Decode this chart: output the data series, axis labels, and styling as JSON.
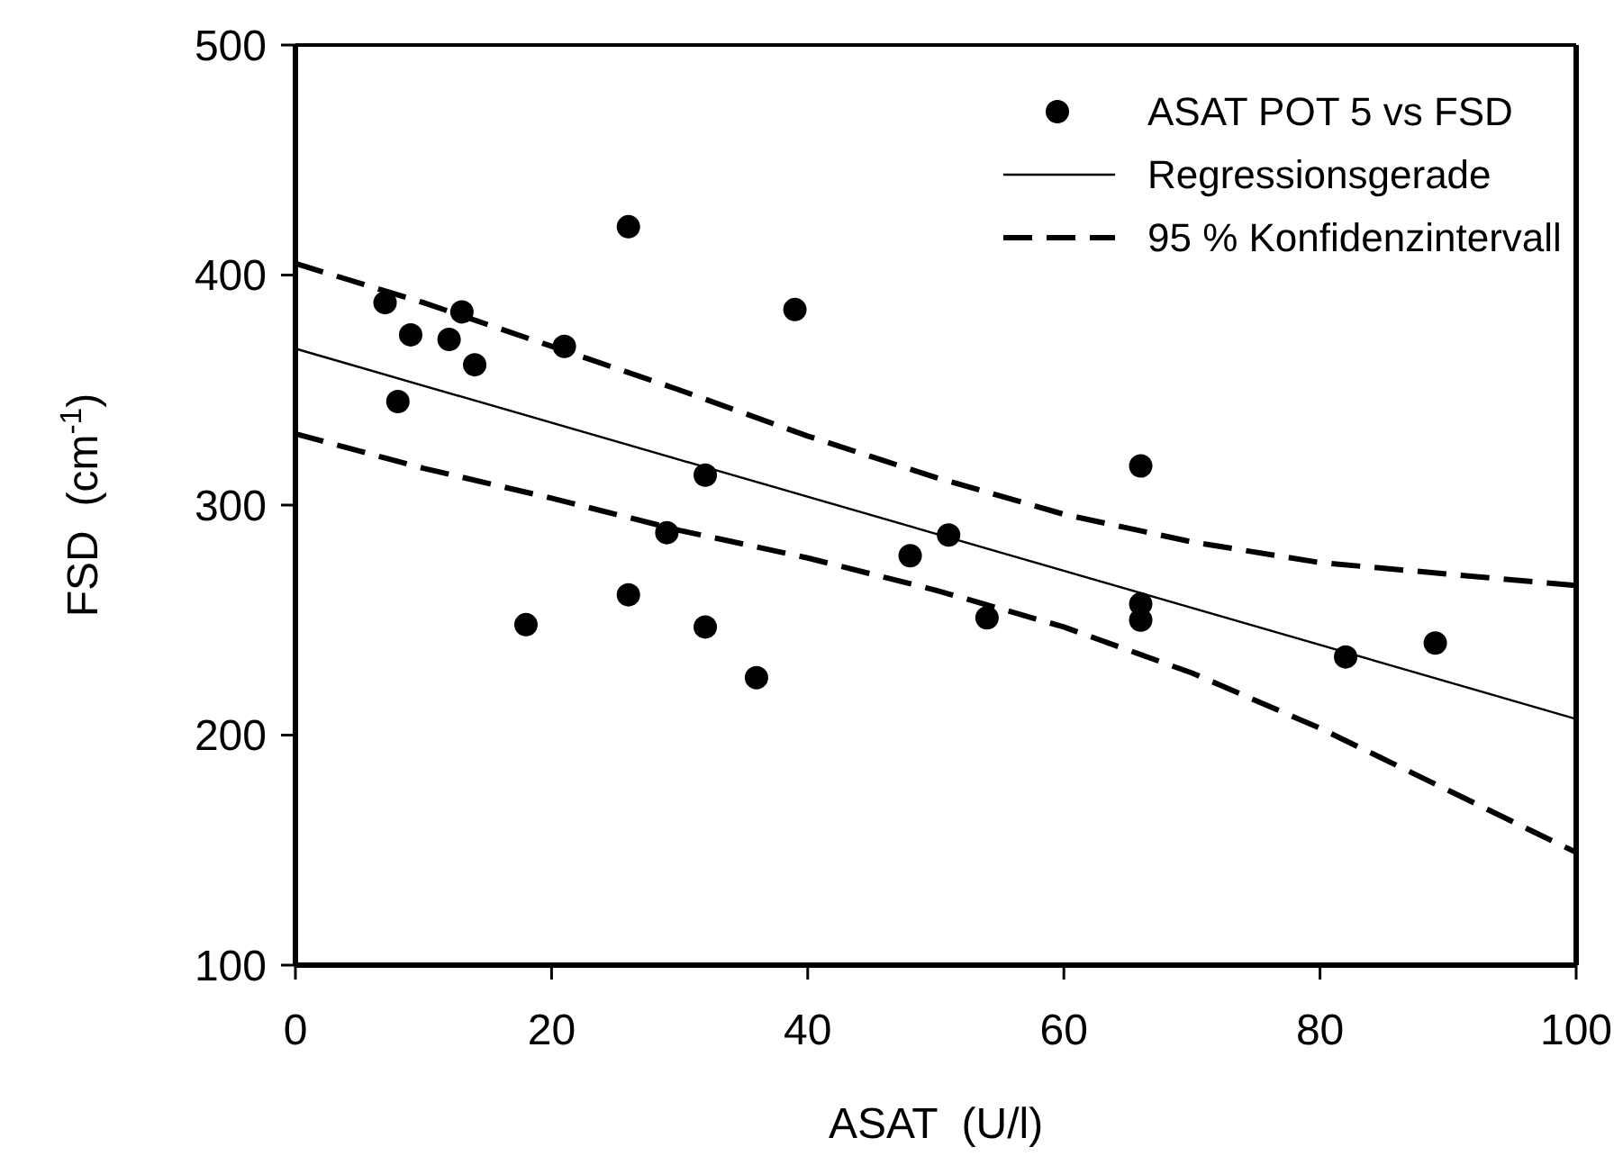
{
  "chart_data": {
    "type": "scatter",
    "xlabel": "ASAT  (U/l)",
    "ylabel": "FSD  (cm$^{-1}$)",
    "xlim": [
      0,
      100
    ],
    "xticks": [
      0,
      20,
      40,
      60,
      80,
      100
    ],
    "ylim": [
      100,
      500
    ],
    "yticks": [
      100,
      200,
      300,
      400,
      500
    ],
    "grid": false,
    "legend": "top right",
    "series": [
      {
        "name": "ASAT POT 5 vs FSD",
        "marker": "circle",
        "color": "#000000",
        "x": [
          7,
          8,
          9,
          12,
          13,
          14,
          18,
          21,
          26,
          26,
          29,
          32,
          32,
          36,
          39,
          48,
          51,
          54,
          66,
          66,
          66,
          82,
          89
        ],
        "values": [
          388,
          345,
          374,
          372,
          384,
          361,
          248,
          369,
          421,
          261,
          288,
          313,
          247,
          225,
          385,
          278,
          287,
          251,
          317,
          257,
          250,
          234,
          240
        ]
      },
      {
        "name": "Regressionsgerade",
        "type": "line",
        "line_style": "solid",
        "color": "#000000",
        "x": [
          0,
          100
        ],
        "values": [
          368,
          207
        ]
      },
      {
        "name": "95 % Konfidenzintervall",
        "type": "line",
        "line_style": "dashed",
        "color": "#000000",
        "x": [
          0,
          10,
          20,
          30,
          40,
          50,
          60,
          70,
          80,
          90,
          100
        ],
        "values": [
          405,
          388,
          369,
          350,
          330,
          312,
          296,
          284,
          275,
          270,
          265
        ]
      },
      {
        "type": "line",
        "line_style": "dashed",
        "color": "#000000",
        "x": [
          0,
          10,
          20,
          30,
          40,
          50,
          60,
          70,
          80,
          90,
          100
        ],
        "values": [
          331,
          316,
          303,
          289,
          277,
          263,
          247,
          227,
          203,
          176,
          149
        ]
      }
    ]
  }
}
